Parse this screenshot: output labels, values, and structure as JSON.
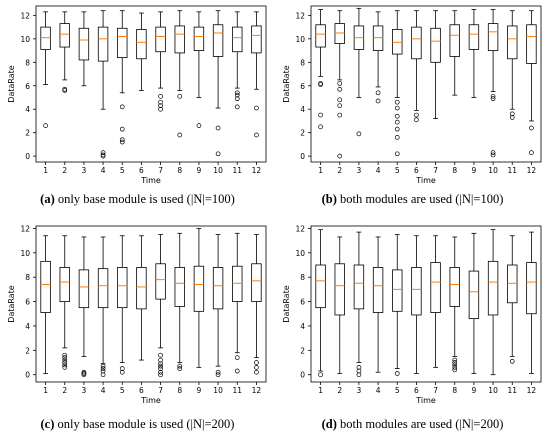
{
  "colors": {
    "box": "#000000",
    "median": "#ff7f0e",
    "flier": "#000000"
  },
  "panels": [
    {
      "caption_letter": "(a)",
      "caption_text": " only base module is used (|N|=100)",
      "chart_data": {
        "type": "box",
        "xlabel": "Time",
        "ylabel": "DataRate",
        "categories": [
          "1",
          "2",
          "3",
          "4",
          "5",
          "6",
          "7",
          "8",
          "9",
          "10",
          "11",
          "12"
        ],
        "ylim": [
          -0.5,
          12.8
        ],
        "yticks": [
          0,
          2,
          4,
          6,
          8,
          10,
          12
        ],
        "boxes": [
          {
            "whislo": 6.1,
            "q1": 9.1,
            "med": 10.1,
            "q3": 11.0,
            "whishi": 12.3,
            "fliers": [
              2.6
            ]
          },
          {
            "whislo": 6.5,
            "q1": 9.3,
            "med": 10.4,
            "q3": 11.3,
            "whishi": 12.3,
            "fliers": [
              5.7,
              5.6
            ]
          },
          {
            "whislo": 6.0,
            "q1": 8.2,
            "med": 9.9,
            "q3": 10.9,
            "whishi": 12.3,
            "fliers": []
          },
          {
            "whislo": 4.0,
            "q1": 8.1,
            "med": 10.0,
            "q3": 11.0,
            "whishi": 12.4,
            "fliers": [
              0.3,
              0.1,
              0.0
            ]
          },
          {
            "whislo": 5.4,
            "q1": 8.4,
            "med": 10.2,
            "q3": 10.9,
            "whishi": 12.4,
            "fliers": [
              4.2,
              2.3,
              1.4,
              1.2
            ]
          },
          {
            "whislo": 5.6,
            "q1": 8.3,
            "med": 9.7,
            "q3": 10.8,
            "whishi": 12.2,
            "fliers": []
          },
          {
            "whislo": 5.8,
            "q1": 8.9,
            "med": 10.2,
            "q3": 11.0,
            "whishi": 12.3,
            "fliers": [
              5.1,
              4.6,
              4.3,
              4.0
            ]
          },
          {
            "whislo": 5.6,
            "q1": 8.8,
            "med": 10.4,
            "q3": 11.1,
            "whishi": 12.4,
            "fliers": [
              5.1,
              1.8
            ]
          },
          {
            "whislo": 5.0,
            "q1": 9.0,
            "med": 10.2,
            "q3": 11.0,
            "whishi": 12.3,
            "fliers": [
              2.6
            ]
          },
          {
            "whislo": 4.1,
            "q1": 8.5,
            "med": 10.5,
            "q3": 11.2,
            "whishi": 12.4,
            "fliers": [
              2.4,
              0.2
            ]
          },
          {
            "whislo": 5.8,
            "q1": 8.9,
            "med": 10.1,
            "q3": 11.0,
            "whishi": 12.3,
            "fliers": [
              5.4,
              5.2,
              4.9,
              4.2
            ]
          },
          {
            "whislo": 5.7,
            "q1": 8.8,
            "med": 10.3,
            "q3": 11.1,
            "whishi": 12.3,
            "fliers": [
              4.1,
              1.8
            ]
          }
        ]
      }
    },
    {
      "caption_letter": "(b)",
      "caption_text": " both modules are used (|N|=100)",
      "chart_data": {
        "type": "box",
        "xlabel": "Time",
        "ylabel": "DataRate",
        "categories": [
          "1",
          "2",
          "3",
          "4",
          "5",
          "6",
          "7",
          "8",
          "9",
          "10",
          "11",
          "12"
        ],
        "ylim": [
          -0.5,
          12.8
        ],
        "yticks": [
          0,
          2,
          4,
          6,
          8,
          10,
          12
        ],
        "boxes": [
          {
            "whislo": 6.8,
            "q1": 9.3,
            "med": 10.4,
            "q3": 11.2,
            "whishi": 12.5,
            "fliers": [
              6.2,
              6.1,
              3.5,
              2.5
            ]
          },
          {
            "whislo": 6.5,
            "q1": 9.6,
            "med": 10.5,
            "q3": 11.3,
            "whishi": 12.4,
            "fliers": [
              6.2,
              5.7,
              4.8,
              4.3,
              3.5,
              0.0
            ]
          },
          {
            "whislo": 5.0,
            "q1": 9.1,
            "med": 10.1,
            "q3": 11.1,
            "whishi": 12.6,
            "fliers": [
              1.9
            ]
          },
          {
            "whislo": 5.9,
            "q1": 9.0,
            "med": 10.1,
            "q3": 11.1,
            "whishi": 12.3,
            "fliers": [
              5.4,
              4.7
            ]
          },
          {
            "whislo": 5.0,
            "q1": 8.7,
            "med": 9.7,
            "q3": 10.8,
            "whishi": 12.4,
            "fliers": [
              4.6,
              4.1,
              3.4,
              2.9,
              2.3,
              1.6,
              0.2
            ]
          },
          {
            "whislo": 3.9,
            "q1": 8.3,
            "med": 10.0,
            "q3": 11.0,
            "whishi": 12.4,
            "fliers": [
              3.5,
              3.1
            ]
          },
          {
            "whislo": 3.2,
            "q1": 8.0,
            "med": 9.8,
            "q3": 10.9,
            "whishi": 12.4,
            "fliers": []
          },
          {
            "whislo": 5.2,
            "q1": 8.5,
            "med": 10.3,
            "q3": 11.2,
            "whishi": 12.4,
            "fliers": []
          },
          {
            "whislo": 5.0,
            "q1": 9.1,
            "med": 10.4,
            "q3": 11.2,
            "whishi": 12.5,
            "fliers": []
          },
          {
            "whislo": 5.5,
            "q1": 9.0,
            "med": 10.6,
            "q3": 11.3,
            "whishi": 12.5,
            "fliers": [
              5.1,
              4.9,
              0.3,
              0.1
            ]
          },
          {
            "whislo": 4.0,
            "q1": 8.3,
            "med": 10.0,
            "q3": 11.1,
            "whishi": 12.4,
            "fliers": [
              3.6,
              3.3
            ]
          },
          {
            "whislo": 3.0,
            "q1": 7.9,
            "med": 10.2,
            "q3": 11.2,
            "whishi": 12.4,
            "fliers": [
              2.4,
              0.3
            ]
          }
        ]
      }
    },
    {
      "caption_letter": "(c)",
      "caption_text": " only base module is used (|N|=200)",
      "chart_data": {
        "type": "box",
        "xlabel": "Time",
        "ylabel": "DataRate",
        "categories": [
          "1",
          "2",
          "3",
          "4",
          "5",
          "6",
          "7",
          "8",
          "9",
          "10",
          "11",
          "12"
        ],
        "ylim": [
          -0.6,
          12.2
        ],
        "yticks": [
          0,
          2,
          4,
          6,
          8,
          10,
          12
        ],
        "boxes": [
          {
            "whislo": 0.1,
            "q1": 5.1,
            "med": 7.4,
            "q3": 9.3,
            "whishi": 11.4,
            "fliers": []
          },
          {
            "whislo": 2.2,
            "q1": 6.0,
            "med": 7.6,
            "q3": 8.8,
            "whishi": 11.4,
            "fliers": [
              1.6,
              1.4,
              1.2,
              1.0,
              0.8,
              0.6
            ]
          },
          {
            "whislo": 1.5,
            "q1": 5.5,
            "med": 7.2,
            "q3": 8.6,
            "whishi": 11.3,
            "fliers": [
              0.2,
              0.1,
              0.0
            ]
          },
          {
            "whislo": 0.9,
            "q1": 5.5,
            "med": 7.3,
            "q3": 8.7,
            "whishi": 11.3,
            "fliers": [
              0.7,
              0.5,
              0.3,
              0.0
            ]
          },
          {
            "whislo": 1.0,
            "q1": 5.5,
            "med": 7.3,
            "q3": 8.8,
            "whishi": 11.4,
            "fliers": [
              0.5,
              0.2
            ]
          },
          {
            "whislo": 1.2,
            "q1": 5.4,
            "med": 7.2,
            "q3": 8.8,
            "whishi": 11.4,
            "fliers": []
          },
          {
            "whislo": 2.2,
            "q1": 6.2,
            "med": 7.8,
            "q3": 9.1,
            "whishi": 11.5,
            "fliers": [
              1.6,
              1.2,
              0.9,
              0.7,
              0.5,
              0.2,
              0.0
            ]
          },
          {
            "whislo": 1.0,
            "q1": 5.6,
            "med": 7.5,
            "q3": 8.8,
            "whishi": 11.6,
            "fliers": [
              0.7,
              0.5
            ]
          },
          {
            "whislo": 0.6,
            "q1": 5.2,
            "med": 7.4,
            "q3": 8.9,
            "whishi": 12.0,
            "fliers": []
          },
          {
            "whislo": 0.7,
            "q1": 5.4,
            "med": 7.3,
            "q3": 8.8,
            "whishi": 11.5,
            "fliers": [
              0.2,
              0.0
            ]
          },
          {
            "whislo": 1.8,
            "q1": 6.0,
            "med": 7.5,
            "q3": 8.9,
            "whishi": 11.6,
            "fliers": [
              1.4,
              0.3
            ]
          },
          {
            "whislo": 1.4,
            "q1": 6.0,
            "med": 7.7,
            "q3": 9.1,
            "whishi": 11.5,
            "fliers": [
              1.0,
              0.6,
              0.2
            ]
          }
        ]
      }
    },
    {
      "caption_letter": "(d)",
      "caption_text": " both modules are used (|N|=200)",
      "chart_data": {
        "type": "box",
        "xlabel": "Time",
        "ylabel": "DataRate",
        "categories": [
          "1",
          "2",
          "3",
          "4",
          "5",
          "6",
          "7",
          "8",
          "9",
          "10",
          "11",
          "12"
        ],
        "ylim": [
          -0.6,
          12.2
        ],
        "yticks": [
          0,
          2,
          4,
          6,
          8,
          10,
          12
        ],
        "boxes": [
          {
            "whislo": 0.3,
            "q1": 5.5,
            "med": 7.7,
            "q3": 9.0,
            "whishi": 11.9,
            "fliers": [
              0.0
            ]
          },
          {
            "whislo": 0.1,
            "q1": 4.9,
            "med": 7.3,
            "q3": 9.1,
            "whishi": 11.3,
            "fliers": []
          },
          {
            "whislo": 1.0,
            "q1": 5.4,
            "med": 7.5,
            "q3": 9.0,
            "whishi": 11.7,
            "fliers": [
              0.6,
              0.3,
              0.0
            ]
          },
          {
            "whislo": 0.2,
            "q1": 5.1,
            "med": 7.3,
            "q3": 8.8,
            "whishi": 11.3,
            "fliers": []
          },
          {
            "whislo": 0.5,
            "q1": 5.2,
            "med": 7.0,
            "q3": 8.6,
            "whishi": 11.5,
            "fliers": [
              0.1
            ]
          },
          {
            "whislo": 0.1,
            "q1": 4.9,
            "med": 7.0,
            "q3": 8.8,
            "whishi": 11.4,
            "fliers": []
          },
          {
            "whislo": 0.6,
            "q1": 5.1,
            "med": 7.6,
            "q3": 9.2,
            "whishi": 11.4,
            "fliers": []
          },
          {
            "whislo": 1.5,
            "q1": 5.6,
            "med": 7.4,
            "q3": 8.8,
            "whishi": 11.3,
            "fliers": [
              1.2,
              1.0,
              0.8,
              0.6,
              0.4
            ]
          },
          {
            "whislo": 0.1,
            "q1": 4.6,
            "med": 6.8,
            "q3": 8.5,
            "whishi": 11.6,
            "fliers": []
          },
          {
            "whislo": 0.0,
            "q1": 4.9,
            "med": 7.6,
            "q3": 9.3,
            "whishi": 11.9,
            "fliers": []
          },
          {
            "whislo": 1.5,
            "q1": 5.9,
            "med": 7.5,
            "q3": 9.0,
            "whishi": 11.4,
            "fliers": [
              1.1
            ]
          },
          {
            "whislo": 0.1,
            "q1": 5.0,
            "med": 7.6,
            "q3": 9.2,
            "whishi": 11.7,
            "fliers": []
          }
        ]
      }
    }
  ]
}
